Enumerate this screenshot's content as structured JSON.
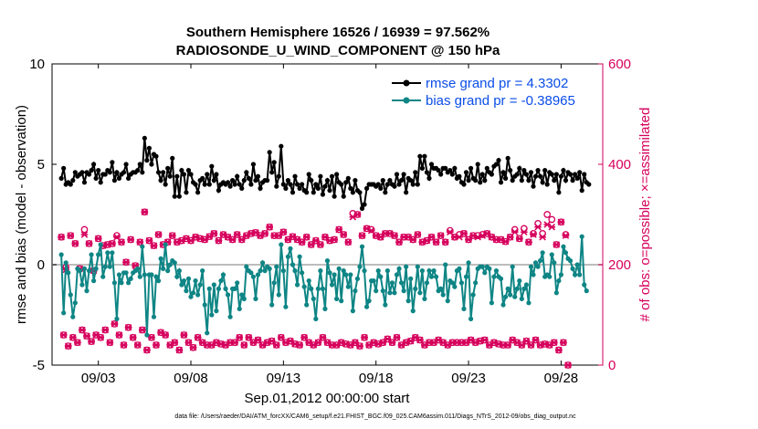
{
  "chart_data": {
    "type": "line",
    "title_line1": "Southern Hemisphere 16526 / 16939 = 97.562%",
    "title_line2": "RADIOSONDE_U_WIND_COMPONENT @ 150 hPa",
    "xlabel": "Sep.01,2012 00:00:00 start",
    "ylabel_left": "rmse and bias (model - observation)",
    "ylabel_right": "# of obs: o=possible; ×=assimilated",
    "footnote": "data file: /Users/raeder/DAI/ATM_forcXX/CAM6_setup/f.e21.FHIST_BGC.f09_025.CAM6assim.011/Diags_NTrS_2012-09/obs_diag_output.nc",
    "xlim": [
      0.5,
      30.25
    ],
    "x_ticks": [
      3,
      8,
      13,
      18,
      23,
      28
    ],
    "x_tick_labels": [
      "09/03",
      "09/08",
      "09/13",
      "09/18",
      "09/23",
      "09/28"
    ],
    "ylim_left": [
      -5,
      10
    ],
    "y_left_ticks": [
      -5,
      0,
      5,
      10
    ],
    "y_left_tick_labels": [
      "-5",
      "0",
      "5",
      "10"
    ],
    "ylim_right": [
      0,
      600
    ],
    "y_right_ticks": [
      0,
      200,
      400,
      600
    ],
    "y_right_tick_labels": [
      "0",
      "200",
      "400",
      "600"
    ],
    "colors": {
      "rmse": "#000000",
      "bias": "#0f8585",
      "obs": "#d6005c",
      "zero_line": "#bdbdbd",
      "right_axis": "#d6005c"
    },
    "series": [
      {
        "name": "rmse grand pr = 4.3302",
        "values": [
          4.3,
          4.8,
          4.0,
          4.1,
          4.0,
          4.2,
          4.6,
          4.4,
          4.5,
          4.6,
          4.1,
          4.6,
          4.5,
          4.7,
          5.0,
          4.3,
          4.7,
          4.1,
          4.5,
          4.5,
          4.7,
          4.6,
          5.1,
          4.2,
          4.6,
          4.3,
          4.5,
          4.6,
          5.0,
          4.3,
          4.5,
          4.6,
          4.6,
          4.7,
          5.0,
          4.6,
          6.3,
          5.2,
          5.8,
          5.0,
          5.5,
          5.4,
          4.6,
          4.2,
          4.6,
          4.0,
          4.8,
          4.4,
          5.3,
          3.4,
          4.4,
          3.4,
          4.7,
          4.5,
          3.6,
          4.7,
          4.5,
          4.1,
          4.0,
          3.6,
          4.2,
          4.3,
          4.0,
          4.5,
          4.0,
          4.9,
          4.2,
          4.5,
          3.7,
          4.0,
          4.1,
          4.0,
          4.1,
          3.9,
          4.2,
          4.0,
          4.4,
          4.0,
          3.8,
          4.2,
          4.6,
          4.3,
          4.0,
          5.0,
          4.2,
          4.4,
          3.8,
          4.1,
          4.2,
          4.2,
          5.6,
          4.6,
          5.1,
          3.9,
          4.4,
          5.9,
          4.0,
          3.8,
          4.2,
          4.0,
          3.6,
          4.4,
          4.0,
          3.8,
          4.0,
          3.7,
          3.6,
          4.5,
          4.2,
          3.6,
          4.0,
          3.8,
          4.4,
          3.5,
          3.9,
          4.2,
          3.7,
          4.4,
          3.4,
          4.5,
          4.1,
          4.0,
          3.4,
          4.1,
          4.3,
          3.8,
          3.6,
          4.2,
          3.7,
          3.6,
          2.8,
          3.0,
          3.8,
          4.0,
          4.0,
          4.0,
          3.9,
          4.0,
          3.8,
          4.2,
          3.6,
          4.0,
          4.2,
          4.0,
          3.9,
          4.5,
          4.0,
          4.2,
          4.5,
          3.6,
          4.3,
          4.2,
          4.0,
          4.6,
          4.0,
          5.4,
          4.8,
          5.4,
          4.6,
          4.3,
          5.0,
          4.8,
          4.8,
          4.7,
          4.5,
          4.8,
          4.8,
          4.6,
          4.7,
          4.5,
          4.8,
          4.3,
          4.4,
          4.1,
          4.0,
          4.6,
          4.2,
          4.8,
          4.3,
          4.2,
          5.0,
          4.1,
          4.5,
          4.2,
          4.8,
          4.6,
          4.5,
          4.9,
          5.0,
          5.2,
          4.1,
          4.6,
          4.3,
          5.3,
          4.7,
          4.2,
          4.4,
          4.5,
          4.8,
          4.2,
          4.7,
          4.5,
          4.2,
          4.6,
          3.9,
          4.4,
          4.7,
          4.4,
          4.1,
          4.7,
          4.0,
          4.6,
          4.5,
          4.2,
          4.5,
          3.6,
          4.4,
          4.7,
          4.2,
          4.6,
          4.5,
          4.2,
          4.5,
          4.3,
          4.6,
          3.7,
          4.5,
          4.1,
          4.0
        ]
      },
      {
        "name": "bias grand pr = -0.38965",
        "values": [
          0.5,
          -2.4,
          0.1,
          -0.4,
          -1.5,
          -2.6,
          -1.9,
          -0.2,
          -0.3,
          -1.0,
          -0.2,
          -1.3,
          -0.3,
          0.5,
          -0.8,
          -0.2,
          0.5,
          1.0,
          -0.6,
          -0.1,
          0.6,
          -0.1,
          0.6,
          -0.9,
          -2.7,
          -0.5,
          -0.9,
          -0.4,
          -0.4,
          -0.9,
          -0.7,
          -0.4,
          -0.3,
          -0.2,
          -0.6,
          0.9,
          -0.5,
          -3.5,
          -0.5,
          -0.5,
          -2.6,
          -0.6,
          -0.8,
          0.3,
          -0.2,
          1.0,
          -0.3,
          0.0,
          0.2,
          0.1,
          -0.6,
          -0.3,
          -1.0,
          -0.8,
          -1.3,
          -0.7,
          -1.6,
          -1.4,
          -0.8,
          -1.5,
          -1.0,
          -0.3,
          -2.0,
          -3.4,
          -1.2,
          -2.5,
          -1.0,
          -2.3,
          -1.2,
          -0.8,
          -0.5,
          -1.2,
          -1.5,
          -2.6,
          -1.2,
          -1.2,
          -0.9,
          -2.2,
          -1.5,
          -1.7,
          -0.1,
          -0.3,
          -0.4,
          -0.6,
          -1.7,
          -0.5,
          -0.3,
          0.1,
          -0.3,
          -0.1,
          -0.2,
          -2.0,
          -0.9,
          -0.1,
          -1.5,
          1.0,
          -0.3,
          -2.1,
          0.4,
          0.8,
          0.0,
          -0.3,
          -1.0,
          0.4,
          -0.4,
          -1.1,
          -2.0,
          -0.8,
          -1.2,
          -1.7,
          -2.7,
          -1.2,
          -0.3,
          -1.2,
          -2.2,
          0.2,
          -0.4,
          -1.0,
          -0.5,
          -1.7,
          -0.2,
          -1.8,
          -0.3,
          -0.5,
          -1.1,
          -0.5,
          -2.3,
          -1.3,
          -0.7,
          -0.1,
          0.9,
          -0.3,
          -2.1,
          -1.8,
          -0.8,
          -0.8,
          -1.3,
          -0.3,
          -0.6,
          -1.3,
          -2.0,
          -0.3,
          -1.4,
          -0.9,
          -1.4,
          -0.5,
          -0.2,
          -0.9,
          -1.3,
          -0.1,
          -1.8,
          -0.7,
          -2.3,
          -1.2,
          -0.1,
          -1.4,
          -0.3,
          -1.7,
          -0.9,
          -0.3,
          -0.6,
          -0.3,
          -0.6,
          -1.3,
          -1.2,
          -1.5,
          0.0,
          -1.8,
          -0.8,
          -0.9,
          -1.1,
          -0.3,
          -0.2,
          -0.9,
          -2.2,
          -0.6,
          0.1,
          -2.7,
          -1.5,
          -0.9,
          -0.2,
          -0.1,
          -0.1,
          -0.4,
          -0.1,
          -0.2,
          -1.9,
          -0.6,
          -0.3,
          -0.6,
          -0.7,
          -2.0,
          -1.6,
          -1.2,
          -1.5,
          -0.1,
          -1.6,
          -1.2,
          -0.8,
          -1.7,
          -1.2,
          -1.0,
          -1.9,
          -0.1,
          -0.5,
          0.1,
          -0.1,
          0.2,
          0.6,
          -0.6,
          -0.5,
          -0.6,
          0.5,
          0.1,
          -1.4,
          -0.8,
          -0.5,
          0.9,
          0.6,
          0.3,
          0.2,
          -0.2,
          -0.5,
          0.0,
          -0.5,
          1.4,
          -1.0,
          -1.3
        ]
      },
      {
        "name": "# of obs possible",
        "values": [
          255,
          60,
          195,
          38,
          258,
          55,
          242,
          45,
          192,
          70,
          270,
          58,
          242,
          47,
          188,
          60,
          252,
          55,
          238,
          70,
          240,
          45,
          242,
          82,
          258,
          60,
          245,
          40,
          205,
          75,
          250,
          55,
          198,
          40,
          245,
          70,
          305,
          30,
          248,
          55,
          238,
          40,
          260,
          65,
          240,
          60,
          245,
          40,
          258,
          45,
          245,
          30,
          248,
          60,
          252,
          45,
          248,
          35,
          255,
          55,
          252,
          45,
          250,
          40,
          256,
          40,
          262,
          45,
          248,
          42,
          260,
          40,
          255,
          45,
          250,
          45,
          260,
          55,
          250,
          40,
          258,
          55,
          262,
          45,
          264,
          50,
          258,
          40,
          262,
          45,
          275,
          48,
          258,
          40,
          258,
          55,
          265,
          45,
          250,
          48,
          256,
          42,
          250,
          40,
          245,
          55,
          255,
          45,
          240,
          40,
          248,
          45,
          240,
          55,
          255,
          45,
          248,
          40,
          250,
          40,
          270,
          45,
          260,
          42,
          245,
          40,
          302,
          45,
          300,
          38,
          258,
          55,
          272,
          40,
          270,
          45,
          258,
          42,
          255,
          45,
          262,
          52,
          262,
          45,
          258,
          55,
          245,
          40,
          255,
          45,
          255,
          48,
          250,
          55,
          260,
          50,
          245,
          40,
          248,
          45,
          255,
          45,
          245,
          50,
          258,
          45,
          245,
          40,
          268,
          45,
          255,
          45,
          260,
          45,
          262,
          45,
          250,
          50,
          258,
          45,
          258,
          48,
          260,
          50,
          262,
          40,
          255,
          45,
          250,
          42,
          250,
          40,
          246,
          40,
          255,
          50,
          270,
          45,
          252,
          40,
          272,
          48,
          245,
          40,
          262,
          50,
          282,
          40,
          262,
          42,
          300,
          40,
          290,
          45,
          240,
          30,
          285,
          45,
          260,
          0
        ]
      },
      {
        "name": "# of obs assimilated",
        "values": [
          255,
          60,
          190,
          38,
          258,
          55,
          242,
          45,
          192,
          70,
          260,
          58,
          242,
          47,
          188,
          60,
          252,
          55,
          238,
          70,
          240,
          45,
          242,
          82,
          255,
          60,
          245,
          40,
          205,
          75,
          250,
          55,
          198,
          40,
          245,
          70,
          305,
          30,
          248,
          55,
          238,
          40,
          260,
          65,
          240,
          60,
          245,
          40,
          258,
          45,
          245,
          30,
          248,
          60,
          252,
          45,
          248,
          35,
          255,
          55,
          252,
          45,
          250,
          40,
          256,
          40,
          262,
          45,
          248,
          42,
          260,
          40,
          255,
          45,
          250,
          45,
          260,
          55,
          250,
          40,
          258,
          55,
          262,
          45,
          264,
          50,
          258,
          40,
          262,
          45,
          275,
          48,
          258,
          40,
          258,
          55,
          265,
          45,
          250,
          48,
          256,
          42,
          250,
          40,
          245,
          55,
          255,
          45,
          240,
          40,
          248,
          45,
          240,
          55,
          255,
          45,
          248,
          40,
          250,
          40,
          270,
          45,
          260,
          42,
          245,
          40,
          295,
          45,
          300,
          38,
          258,
          55,
          272,
          40,
          268,
          45,
          258,
          42,
          255,
          45,
          262,
          52,
          262,
          45,
          258,
          55,
          245,
          40,
          255,
          45,
          255,
          48,
          250,
          55,
          260,
          50,
          245,
          40,
          248,
          45,
          255,
          45,
          245,
          50,
          258,
          45,
          245,
          40,
          265,
          45,
          255,
          45,
          255,
          45,
          262,
          45,
          250,
          50,
          258,
          45,
          255,
          48,
          258,
          50,
          262,
          40,
          255,
          45,
          250,
          42,
          250,
          40,
          246,
          40,
          255,
          50,
          265,
          45,
          252,
          40,
          265,
          48,
          245,
          40,
          260,
          50,
          275,
          40,
          255,
          42,
          280,
          40,
          275,
          45,
          240,
          30,
          285,
          45,
          258,
          0
        ]
      }
    ],
    "legend": {
      "placement": "top-right",
      "entries": [
        "rmse grand pr = 4.3302",
        "bias grand pr = -0.38965"
      ],
      "text_color": "#0a4de8"
    }
  }
}
